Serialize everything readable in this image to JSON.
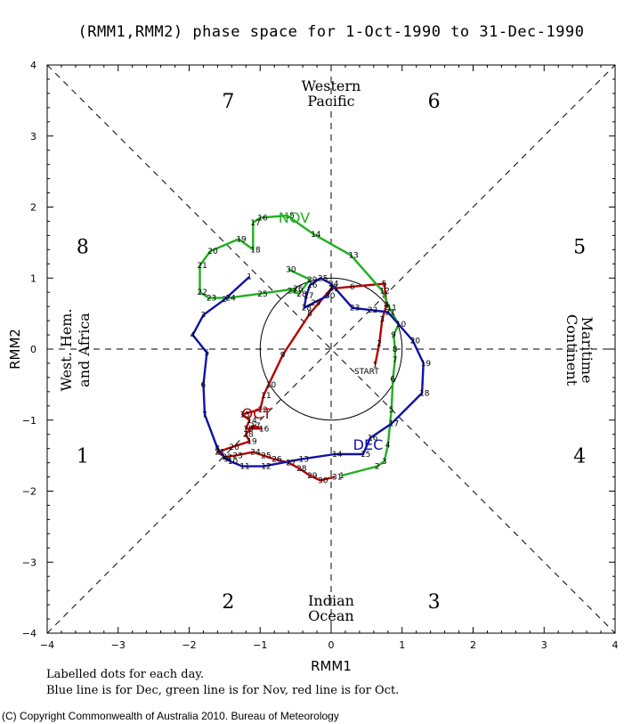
{
  "chart_data": {
    "type": "line",
    "title": "(RMM1,RMM2) phase space for  1-Oct-1990 to 31-Dec-1990",
    "xlabel": "RMM1",
    "ylabel": "RMM2",
    "xlim": [
      -4,
      4
    ],
    "ylim": [
      -4,
      4
    ],
    "x_ticks": [
      "−4",
      "−3",
      "−2",
      "−1",
      "0",
      "1",
      "2",
      "3",
      "4"
    ],
    "y_ticks": [
      "4",
      "3",
      "2",
      "1",
      "0",
      "−1",
      "−2",
      "−3",
      "−4"
    ],
    "phases": [
      {
        "label": "1",
        "x": -3.5,
        "y": -1.5
      },
      {
        "label": "2",
        "x": -1.45,
        "y": -3.55
      },
      {
        "label": "3",
        "x": 1.45,
        "y": -3.55
      },
      {
        "label": "4",
        "x": 3.5,
        "y": -1.5
      },
      {
        "label": "5",
        "x": 3.5,
        "y": 1.45
      },
      {
        "label": "6",
        "x": 1.45,
        "y": 3.5
      },
      {
        "label": "7",
        "x": -1.45,
        "y": 3.5
      },
      {
        "label": "8",
        "x": -3.5,
        "y": 1.45
      }
    ],
    "regions": {
      "top": [
        "Western",
        "Pacific"
      ],
      "bottom": [
        "Indian",
        "Ocean"
      ],
      "left": [
        "West. Hem.",
        "and Africa"
      ],
      "right": [
        "Maritime",
        "Continent"
      ]
    },
    "start_label": "START",
    "series": [
      {
        "name": "Oct",
        "color": "#b40000",
        "month_label": "OCT",
        "month_label_at": [
          -1.05,
          -0.98
        ],
        "points": [
          [
            0.62,
            -0.22
          ],
          [
            0.68,
            0.08
          ],
          [
            0.72,
            0.42
          ],
          [
            0.78,
            0.62
          ],
          [
            0.75,
            0.92
          ],
          [
            0.3,
            0.88
          ],
          [
            0.0,
            0.85
          ],
          [
            -0.3,
            0.5
          ],
          [
            -0.68,
            -0.08
          ],
          [
            -0.88,
            -0.5
          ],
          [
            -0.95,
            -0.65
          ],
          [
            -1.0,
            -0.85
          ],
          [
            -1.25,
            -0.92
          ],
          [
            -1.15,
            -1.0
          ],
          [
            -1.2,
            -1.12
          ],
          [
            -0.98,
            -1.12
          ],
          [
            -1.1,
            -1.08
          ],
          [
            -1.2,
            -1.2
          ],
          [
            -1.15,
            -1.3
          ],
          [
            -1.4,
            -1.38
          ],
          [
            -1.6,
            -1.45
          ],
          [
            -1.5,
            -1.52
          ],
          [
            -1.35,
            -1.5
          ],
          [
            -1.1,
            -1.45
          ],
          [
            -0.95,
            -1.5
          ],
          [
            -0.8,
            -1.55
          ],
          [
            -0.6,
            -1.6
          ],
          [
            -0.45,
            -1.68
          ],
          [
            -0.3,
            -1.78
          ],
          [
            -0.15,
            -1.85
          ],
          [
            0.05,
            -1.8
          ]
        ]
      },
      {
        "name": "Nov",
        "color": "#20b020",
        "month_label": "NOV",
        "month_label_at": [
          -0.52,
          1.78
        ],
        "points": [
          [
            0.15,
            -1.78
          ],
          [
            0.65,
            -1.65
          ],
          [
            0.75,
            -1.58
          ],
          [
            0.8,
            -1.35
          ],
          [
            0.85,
            -0.85
          ],
          [
            0.87,
            -0.42
          ],
          [
            0.9,
            -0.15
          ],
          [
            0.9,
            0.0
          ],
          [
            0.88,
            0.2
          ],
          [
            0.95,
            0.35
          ],
          [
            0.82,
            0.58
          ],
          [
            0.72,
            0.82
          ],
          [
            0.28,
            1.32
          ],
          [
            -0.25,
            1.62
          ],
          [
            -0.62,
            1.88
          ],
          [
            -1.0,
            1.85
          ],
          [
            -1.1,
            1.78
          ],
          [
            -1.1,
            1.4
          ],
          [
            -1.3,
            1.55
          ],
          [
            -1.7,
            1.38
          ],
          [
            -1.85,
            1.18
          ],
          [
            -1.85,
            0.8
          ],
          [
            -1.72,
            0.72
          ],
          [
            -1.45,
            0.72
          ],
          [
            -1.0,
            0.78
          ],
          [
            -0.5,
            0.85
          ],
          [
            -0.58,
            0.82
          ],
          [
            -0.45,
            0.78
          ],
          [
            -0.3,
            0.98
          ],
          [
            -0.6,
            1.12
          ]
        ]
      },
      {
        "name": "Dec",
        "color": "#1010a8",
        "month_label": "DEC",
        "month_label_at": [
          0.52,
          -1.42
        ],
        "points": [
          [
            -1.15,
            1.02
          ],
          [
            -1.5,
            0.7
          ],
          [
            -1.8,
            0.48
          ],
          [
            -1.95,
            0.2
          ],
          [
            -1.75,
            -0.05
          ],
          [
            -1.8,
            -0.5
          ],
          [
            -1.78,
            -0.92
          ],
          [
            -1.6,
            -1.4
          ],
          [
            -1.48,
            -1.55
          ],
          [
            -1.42,
            -1.58
          ],
          [
            -1.25,
            -1.65
          ],
          [
            -0.95,
            -1.65
          ],
          [
            -0.42,
            -1.55
          ],
          [
            0.05,
            -1.48
          ],
          [
            0.45,
            -1.48
          ],
          [
            0.55,
            -1.25
          ],
          [
            0.85,
            -1.05
          ],
          [
            1.28,
            -0.62
          ],
          [
            1.3,
            -0.2
          ],
          [
            1.15,
            0.12
          ],
          [
            0.8,
            0.52
          ],
          [
            0.55,
            0.55
          ],
          [
            0.3,
            0.58
          ],
          [
            0.0,
            0.92
          ],
          [
            -0.15,
            1.0
          ],
          [
            -0.3,
            0.9
          ],
          [
            -0.35,
            0.75
          ],
          [
            -0.38,
            0.58
          ],
          [
            -0.25,
            0.65
          ],
          [
            -0.05,
            0.75
          ],
          [
            0.0,
            0.85
          ]
        ]
      }
    ],
    "notes": [
      "Labelled dots for each day.",
      "Blue line is for Dec, green line is for Nov, red line is for Oct."
    ],
    "copyright": "(C) Copyright Commonwealth of Australia 2010. Bureau of Meteorology"
  }
}
